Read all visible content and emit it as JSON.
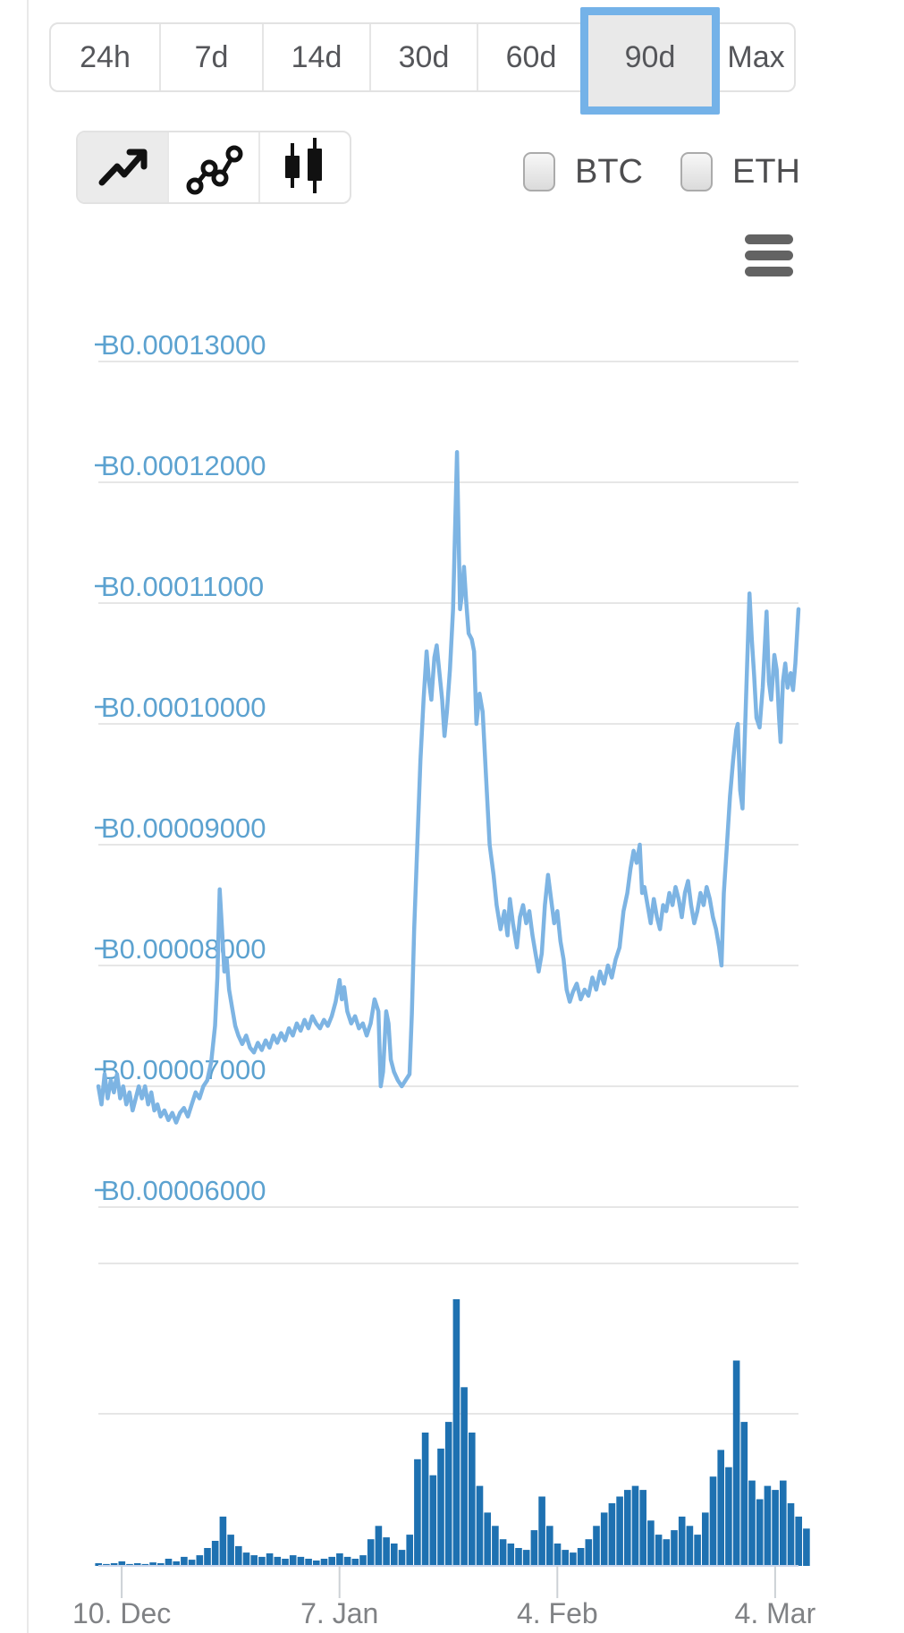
{
  "toolbar": {
    "ranges": [
      {
        "label": "24h",
        "selected": false
      },
      {
        "label": "7d",
        "selected": false
      },
      {
        "label": "14d",
        "selected": false
      },
      {
        "label": "30d",
        "selected": false
      },
      {
        "label": "60d",
        "selected": false
      },
      {
        "label": "90d",
        "selected": true
      },
      {
        "label": "Max",
        "selected": false
      }
    ],
    "chart_types": [
      {
        "name": "line-chart",
        "selected": true
      },
      {
        "name": "scatter-line-chart",
        "selected": false
      },
      {
        "name": "candlestick-chart",
        "selected": false
      }
    ],
    "overlays": [
      {
        "label": "BTC",
        "checked": false
      },
      {
        "label": "ETH",
        "checked": false
      }
    ]
  },
  "export_menu": {
    "icon": "hamburger-menu"
  },
  "colors": {
    "selected_range_border": "#74B2E8",
    "selected_range_bg": "#E9E9E9",
    "price_line": "#7DB4E3",
    "volume_bar": "#1E71B1",
    "y_label_blue": "#5CA2D0",
    "x_label_gray": "#808285",
    "gridline": "#E6E6E6",
    "axis_line": "#CCD6EB",
    "tick_mark": "#CCD1D6"
  },
  "chart_data": {
    "type": "line+bar",
    "title": "",
    "y_axis": {
      "ticks": [
        {
          "label": "฿0.00013000",
          "value": 13
        },
        {
          "label": "฿0.00012000",
          "value": 12
        },
        {
          "label": "฿0.00011000",
          "value": 11
        },
        {
          "label": "฿0.00010000",
          "value": 10
        },
        {
          "label": "฿0.00009000",
          "value": 9
        },
        {
          "label": "฿0.00008000",
          "value": 8
        },
        {
          "label": "฿0.00007000",
          "value": 7
        },
        {
          "label": "฿0.00006000",
          "value": 6
        }
      ],
      "value_unit": "1e-5 BTC"
    },
    "x_axis": {
      "range_days": [
        0,
        90
      ],
      "ticks": [
        {
          "label": "10. Dec",
          "day": 3
        },
        {
          "label": "7. Jan",
          "day": 31
        },
        {
          "label": "4. Feb",
          "day": 59
        },
        {
          "label": "4. Mar",
          "day": 87
        }
      ]
    },
    "price_series": {
      "name": "price",
      "unit": "BTC",
      "value_unit": "1e-5 BTC",
      "points": [
        [
          0,
          7.0
        ],
        [
          0.4,
          6.85
        ],
        [
          0.8,
          7.1
        ],
        [
          1.2,
          6.9
        ],
        [
          1.6,
          7.05
        ],
        [
          2,
          6.95
        ],
        [
          2.4,
          7.1
        ],
        [
          2.8,
          6.9
        ],
        [
          3.2,
          7.0
        ],
        [
          3.6,
          6.85
        ],
        [
          4,
          6.95
        ],
        [
          4.4,
          6.8
        ],
        [
          4.8,
          6.9
        ],
        [
          5.2,
          7.0
        ],
        [
          5.6,
          6.9
        ],
        [
          6,
          7.0
        ],
        [
          6.4,
          6.85
        ],
        [
          6.8,
          6.95
        ],
        [
          7.2,
          6.8
        ],
        [
          7.6,
          6.85
        ],
        [
          8,
          6.75
        ],
        [
          8.5,
          6.8
        ],
        [
          9,
          6.72
        ],
        [
          9.5,
          6.78
        ],
        [
          10,
          6.7
        ],
        [
          10.5,
          6.78
        ],
        [
          11,
          6.82
        ],
        [
          11.5,
          6.75
        ],
        [
          12,
          6.85
        ],
        [
          12.5,
          6.95
        ],
        [
          13,
          6.9
        ],
        [
          13.5,
          7.0
        ],
        [
          14,
          7.05
        ],
        [
          14.5,
          7.2
        ],
        [
          15,
          7.5
        ],
        [
          15.3,
          7.9
        ],
        [
          15.6,
          8.63
        ],
        [
          15.9,
          8.3
        ],
        [
          16.2,
          7.95
        ],
        [
          16.5,
          8.05
        ],
        [
          16.8,
          7.8
        ],
        [
          17.2,
          7.65
        ],
        [
          17.6,
          7.5
        ],
        [
          18,
          7.42
        ],
        [
          18.5,
          7.35
        ],
        [
          19,
          7.42
        ],
        [
          19.5,
          7.32
        ],
        [
          20,
          7.28
        ],
        [
          20.5,
          7.36
        ],
        [
          21,
          7.3
        ],
        [
          21.5,
          7.38
        ],
        [
          22,
          7.32
        ],
        [
          22.5,
          7.42
        ],
        [
          23,
          7.36
        ],
        [
          23.5,
          7.44
        ],
        [
          24,
          7.38
        ],
        [
          24.5,
          7.48
        ],
        [
          25,
          7.42
        ],
        [
          25.5,
          7.52
        ],
        [
          26,
          7.46
        ],
        [
          26.5,
          7.55
        ],
        [
          27,
          7.48
        ],
        [
          27.5,
          7.58
        ],
        [
          28,
          7.52
        ],
        [
          28.5,
          7.48
        ],
        [
          29,
          7.55
        ],
        [
          29.5,
          7.5
        ],
        [
          30,
          7.58
        ],
        [
          30.5,
          7.7
        ],
        [
          31,
          7.88
        ],
        [
          31.3,
          7.72
        ],
        [
          31.6,
          7.82
        ],
        [
          32,
          7.62
        ],
        [
          32.5,
          7.52
        ],
        [
          33,
          7.58
        ],
        [
          33.5,
          7.48
        ],
        [
          34,
          7.52
        ],
        [
          34.5,
          7.42
        ],
        [
          35,
          7.52
        ],
        [
          35.5,
          7.72
        ],
        [
          36,
          7.62
        ],
        [
          36.3,
          7.0
        ],
        [
          36.6,
          7.12
        ],
        [
          37,
          7.62
        ],
        [
          37.3,
          7.52
        ],
        [
          37.6,
          7.22
        ],
        [
          38,
          7.12
        ],
        [
          38.5,
          7.05
        ],
        [
          39,
          7.0
        ],
        [
          39.5,
          7.05
        ],
        [
          40,
          7.1
        ],
        [
          40.3,
          7.6
        ],
        [
          40.6,
          8.3
        ],
        [
          41,
          9.0
        ],
        [
          41.4,
          9.7
        ],
        [
          41.8,
          10.2
        ],
        [
          42.2,
          10.6
        ],
        [
          42.5,
          10.35
        ],
        [
          42.8,
          10.2
        ],
        [
          43.2,
          10.55
        ],
        [
          43.5,
          10.65
        ],
        [
          43.8,
          10.45
        ],
        [
          44.2,
          10.2
        ],
        [
          44.5,
          9.9
        ],
        [
          44.8,
          10.1
        ],
        [
          45.2,
          10.45
        ],
        [
          45.6,
          10.95
        ],
        [
          46.1,
          12.25
        ],
        [
          46.3,
          11.6
        ],
        [
          46.5,
          10.95
        ],
        [
          46.7,
          11.05
        ],
        [
          47,
          11.3
        ],
        [
          47.3,
          11.0
        ],
        [
          47.6,
          10.75
        ],
        [
          48,
          10.7
        ],
        [
          48.3,
          10.6
        ],
        [
          48.6,
          10.0
        ],
        [
          49,
          10.25
        ],
        [
          49.4,
          10.1
        ],
        [
          49.8,
          9.6
        ],
        [
          50.3,
          9.0
        ],
        [
          50.8,
          8.75
        ],
        [
          51.2,
          8.5
        ],
        [
          51.7,
          8.3
        ],
        [
          52.2,
          8.45
        ],
        [
          52.6,
          8.25
        ],
        [
          52.9,
          8.55
        ],
        [
          53.3,
          8.35
        ],
        [
          53.8,
          8.15
        ],
        [
          54.2,
          8.4
        ],
        [
          54.6,
          8.5
        ],
        [
          55,
          8.35
        ],
        [
          55.4,
          8.45
        ],
        [
          55.8,
          8.25
        ],
        [
          56.2,
          8.1
        ],
        [
          56.6,
          7.95
        ],
        [
          57,
          8.1
        ],
        [
          57.4,
          8.5
        ],
        [
          57.8,
          8.75
        ],
        [
          58.2,
          8.55
        ],
        [
          58.6,
          8.35
        ],
        [
          59,
          8.45
        ],
        [
          59.4,
          8.2
        ],
        [
          59.8,
          8.05
        ],
        [
          60.2,
          7.8
        ],
        [
          60.6,
          7.7
        ],
        [
          61,
          7.78
        ],
        [
          61.5,
          7.85
        ],
        [
          62,
          7.72
        ],
        [
          62.5,
          7.8
        ],
        [
          63,
          7.75
        ],
        [
          63.5,
          7.9
        ],
        [
          64,
          7.8
        ],
        [
          64.5,
          7.95
        ],
        [
          65,
          7.85
        ],
        [
          65.5,
          8.0
        ],
        [
          66,
          7.9
        ],
        [
          66.5,
          8.05
        ],
        [
          67,
          8.15
        ],
        [
          67.5,
          8.45
        ],
        [
          68,
          8.6
        ],
        [
          68.4,
          8.8
        ],
        [
          68.8,
          8.95
        ],
        [
          69.2,
          8.85
        ],
        [
          69.6,
          9.0
        ],
        [
          69.9,
          8.6
        ],
        [
          70.2,
          8.65
        ],
        [
          70.6,
          8.5
        ],
        [
          71,
          8.35
        ],
        [
          71.4,
          8.55
        ],
        [
          71.8,
          8.4
        ],
        [
          72.2,
          8.3
        ],
        [
          72.6,
          8.5
        ],
        [
          73,
          8.45
        ],
        [
          73.4,
          8.6
        ],
        [
          73.8,
          8.5
        ],
        [
          74.2,
          8.65
        ],
        [
          74.6,
          8.55
        ],
        [
          75,
          8.4
        ],
        [
          75.4,
          8.6
        ],
        [
          75.8,
          8.7
        ],
        [
          76.2,
          8.5
        ],
        [
          76.6,
          8.35
        ],
        [
          77,
          8.45
        ],
        [
          77.4,
          8.6
        ],
        [
          77.8,
          8.5
        ],
        [
          78.2,
          8.65
        ],
        [
          78.6,
          8.55
        ],
        [
          79,
          8.4
        ],
        [
          79.4,
          8.3
        ],
        [
          79.8,
          8.15
        ],
        [
          80.1,
          8.0
        ],
        [
          80.4,
          8.6
        ],
        [
          80.8,
          9.0
        ],
        [
          81.2,
          9.4
        ],
        [
          81.6,
          9.7
        ],
        [
          82,
          9.95
        ],
        [
          82.2,
          10.0
        ],
        [
          82.5,
          9.45
        ],
        [
          82.8,
          9.3
        ],
        [
          83.1,
          9.9
        ],
        [
          83.4,
          10.5
        ],
        [
          83.7,
          11.08
        ],
        [
          84,
          10.7
        ],
        [
          84.3,
          10.4
        ],
        [
          84.6,
          10.05
        ],
        [
          85,
          9.97
        ],
        [
          85.4,
          10.3
        ],
        [
          85.9,
          10.93
        ],
        [
          86.2,
          10.35
        ],
        [
          86.5,
          10.2
        ],
        [
          86.9,
          10.57
        ],
        [
          87.2,
          10.45
        ],
        [
          87.5,
          10.05
        ],
        [
          87.7,
          9.85
        ],
        [
          88,
          10.35
        ],
        [
          88.3,
          10.5
        ],
        [
          88.6,
          10.3
        ],
        [
          89,
          10.42
        ],
        [
          89.3,
          10.28
        ],
        [
          89.6,
          10.5
        ],
        [
          90,
          10.95
        ]
      ]
    },
    "volume_series": {
      "name": "volume",
      "scale": "relative-percent-of-max",
      "values_relative": [
        1,
        0.7,
        1,
        1.7,
        0.7,
        1,
        0.7,
        1.3,
        1,
        2.7,
        1.7,
        3.4,
        2.3,
        4,
        6.7,
        9.4,
        18.5,
        11.7,
        7.4,
        5,
        4,
        3.4,
        4.7,
        3.4,
        2.7,
        4,
        3.4,
        2.7,
        2,
        2.7,
        3.4,
        4.7,
        3.4,
        2.7,
        4,
        10,
        15,
        10.7,
        8.4,
        6,
        11.7,
        40,
        50,
        34,
        44,
        54,
        100,
        67,
        50,
        30,
        20,
        15,
        10,
        8.4,
        6.7,
        6,
        13.4,
        26,
        15,
        8.4,
        6,
        5,
        6.7,
        10,
        15,
        20,
        23.5,
        26,
        28.5,
        30,
        28.5,
        17,
        11.7,
        10,
        13.4,
        18.5,
        15,
        11.7,
        20,
        33.5,
        43.5,
        37,
        77,
        54,
        32,
        25,
        30,
        28.5,
        32,
        23.5,
        18.5,
        14
      ]
    }
  }
}
